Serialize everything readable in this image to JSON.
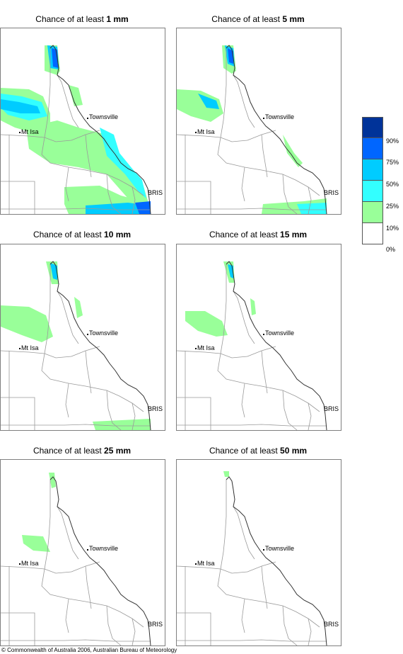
{
  "panels": [
    {
      "title_prefix": "Chance of at least",
      "amount": "1 mm"
    },
    {
      "title_prefix": "Chance of at least",
      "amount": "5 mm"
    },
    {
      "title_prefix": "Chance of at least",
      "amount": "10 mm"
    },
    {
      "title_prefix": "Chance of at least",
      "amount": "15 mm"
    },
    {
      "title_prefix": "Chance of at least",
      "amount": "25 mm"
    },
    {
      "title_prefix": "Chance of at least",
      "amount": "50 mm"
    }
  ],
  "places": {
    "townsville": "Townsville",
    "mt_isa": "Mt Isa",
    "bris": "BRIS"
  },
  "legend": {
    "labels": [
      "90%",
      "75%",
      "50%",
      "25%",
      "10%",
      "0%"
    ],
    "colors": [
      "#003399",
      "#0066ff",
      "#00ccff",
      "#33ffff",
      "#99ff99",
      "#ffffff"
    ]
  },
  "copyright": "© Commonwealth of Australia 2006, Australian Bureau of Meteorology"
}
